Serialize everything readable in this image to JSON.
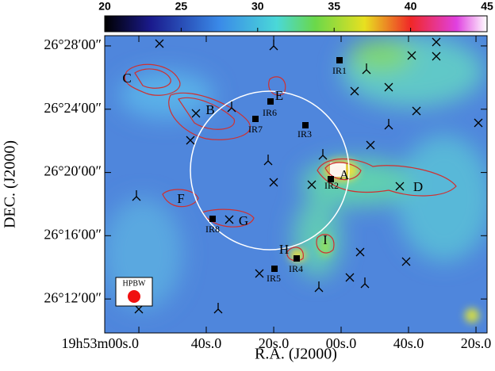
{
  "chart_data": {
    "type": "image",
    "xlabel": "R.A. (J2000)",
    "ylabel": "DEC. (J2000)",
    "xlim": [
      298.2922,
      297.8196
    ],
    "xticks": [
      {
        "value": 298.25,
        "label": "19h53m00s.0"
      },
      {
        "value": 298.1667,
        "label": "40s.0"
      },
      {
        "value": 298.0833,
        "label": "20s.0"
      },
      {
        "value": 298.0,
        "label": "00s.0"
      },
      {
        "value": 297.9167,
        "label": "40s.0"
      },
      {
        "value": 297.8333,
        "label": "20s.0"
      }
    ],
    "ylim": [
      26.1642,
      26.4775
    ],
    "yticks": [
      {
        "value": 26.2,
        "label": "26°12′00″"
      },
      {
        "value": 26.2667,
        "label": "26°16′00″"
      },
      {
        "value": 26.3333,
        "label": "26°20′00″"
      },
      {
        "value": 26.4,
        "label": "26°24′00″"
      },
      {
        "value": 26.4667,
        "label": "26°28′00″"
      }
    ],
    "colorbar": {
      "lim": [
        20,
        45
      ],
      "ticks": [
        20,
        25,
        30,
        35,
        40,
        45
      ]
    },
    "annotations": [
      "C",
      "B",
      "E",
      "IR6",
      "IR7",
      "IR3",
      "IR1",
      "A",
      "IR2",
      "D",
      "F",
      "G",
      "IR8",
      "H",
      "I",
      "IR4",
      "IR5",
      "HPBW"
    ]
  }
}
